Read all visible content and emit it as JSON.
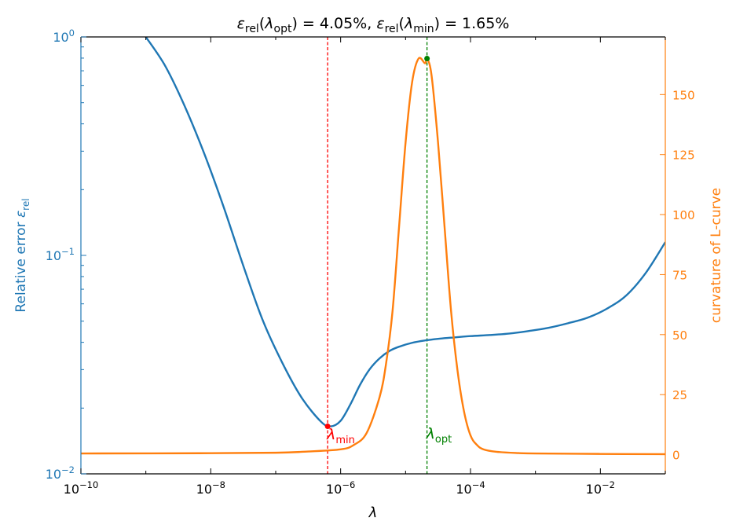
{
  "chart_data": {
    "type": "line",
    "title_parts": [
      {
        "t": "ε",
        "style": "italic"
      },
      {
        "t": "rel",
        "style": "sub"
      },
      {
        "t": "(",
        "style": "normal"
      },
      {
        "t": "λ",
        "style": "italic"
      },
      {
        "t": "opt",
        "style": "sub"
      },
      {
        "t": ") = 4.05%, ",
        "style": "normal"
      },
      {
        "t": "ε",
        "style": "italic"
      },
      {
        "t": "rel",
        "style": "sub"
      },
      {
        "t": "(",
        "style": "normal"
      },
      {
        "t": "λ",
        "style": "italic"
      },
      {
        "t": "min",
        "style": "sub"
      },
      {
        "t": ") = 1.65%",
        "style": "normal"
      }
    ],
    "xlabel": "λ",
    "ylabel_left_parts": [
      {
        "t": "Relative error ",
        "style": "normal"
      },
      {
        "t": "ε",
        "style": "italic"
      },
      {
        "t": "rel",
        "style": "sub"
      }
    ],
    "ylabel_right": "curvature of L-curve",
    "x_scale": "log",
    "xlim_log10": [
      -10,
      -1
    ],
    "x_ticks": [
      {
        "exp": -10,
        "base": "10",
        "pow": "−10"
      },
      {
        "exp": -8,
        "base": "10",
        "pow": "−8"
      },
      {
        "exp": -6,
        "base": "10",
        "pow": "−6"
      },
      {
        "exp": -4,
        "base": "10",
        "pow": "−4"
      },
      {
        "exp": -2,
        "base": "10",
        "pow": "−2"
      }
    ],
    "y_left_scale": "log",
    "y_left_lim_log10": [
      -2,
      0
    ],
    "y_left_ticks": [
      {
        "exp": -2,
        "base": "10",
        "pow": "−2"
      },
      {
        "exp": -1,
        "base": "10",
        "pow": "−1"
      },
      {
        "exp": 0,
        "base": "10",
        "pow": "0"
      }
    ],
    "y_right_lim": [
      -8,
      174
    ],
    "y_right_ticks": [
      0,
      25,
      50,
      75,
      100,
      125,
      150
    ],
    "colors": {
      "error": "#1f77b4",
      "curvature": "#ff7f0e",
      "lambda_min": "#ff0000",
      "lambda_opt": "#008000",
      "axis": "#000000"
    },
    "series": [
      {
        "name": "Relative error",
        "axis": "left",
        "log10_x": [
          -9.0,
          -8.7,
          -8.4,
          -8.1,
          -7.8,
          -7.5,
          -7.2,
          -6.9,
          -6.6,
          -6.3,
          -6.15,
          -6.0,
          -5.85,
          -5.7,
          -5.55,
          -5.4,
          -5.25,
          -5.1,
          -4.9,
          -4.7,
          -4.5,
          -4.3,
          -4.0,
          -3.7,
          -3.4,
          -3.1,
          -2.8,
          -2.5,
          -2.2,
          -1.9,
          -1.6,
          -1.3,
          -1.0
        ],
        "values": [
          1.0,
          0.735,
          0.481,
          0.292,
          0.166,
          0.0898,
          0.0505,
          0.0323,
          0.0223,
          0.0173,
          0.0165,
          0.0175,
          0.0208,
          0.0256,
          0.0302,
          0.0338,
          0.0365,
          0.0382,
          0.0398,
          0.0408,
          0.0415,
          0.042,
          0.0427,
          0.0432,
          0.0439,
          0.0451,
          0.0466,
          0.0489,
          0.0518,
          0.057,
          0.0656,
          0.0832,
          0.115
        ]
      },
      {
        "name": "curvature of L-curve",
        "axis": "right",
        "log10_x": [
          -10.0,
          -8.0,
          -7.0,
          -6.5,
          -6.0,
          -5.8,
          -5.6,
          -5.4,
          -5.3,
          -5.2,
          -5.1,
          -5.0,
          -4.9,
          -4.8,
          -4.7,
          -4.67,
          -4.6,
          -4.5,
          -4.4,
          -4.3,
          -4.2,
          -4.1,
          -4.0,
          -3.9,
          -3.8,
          -3.6,
          -3.3,
          -3.0,
          -2.0,
          -1.0
        ],
        "values": [
          0.5,
          0.6,
          0.8,
          1.3,
          2.2,
          4.0,
          9.0,
          24.0,
          38.0,
          60.0,
          95.0,
          130.0,
          155.0,
          165.0,
          163.0,
          165.0,
          158.0,
          130.0,
          95.0,
          60.0,
          35.0,
          18.0,
          8.0,
          4.0,
          2.2,
          1.2,
          0.7,
          0.5,
          0.3,
          0.2
        ]
      }
    ],
    "markers": [
      {
        "name": "lambda_min",
        "log10_x": -6.2,
        "axis": "left",
        "y": 0.0165,
        "label_base": "λ",
        "label_sub": "min"
      },
      {
        "name": "lambda_opt",
        "log10_x": -4.67,
        "axis": "right",
        "y": 165.0,
        "label_base": "λ",
        "label_sub": "opt"
      }
    ]
  }
}
